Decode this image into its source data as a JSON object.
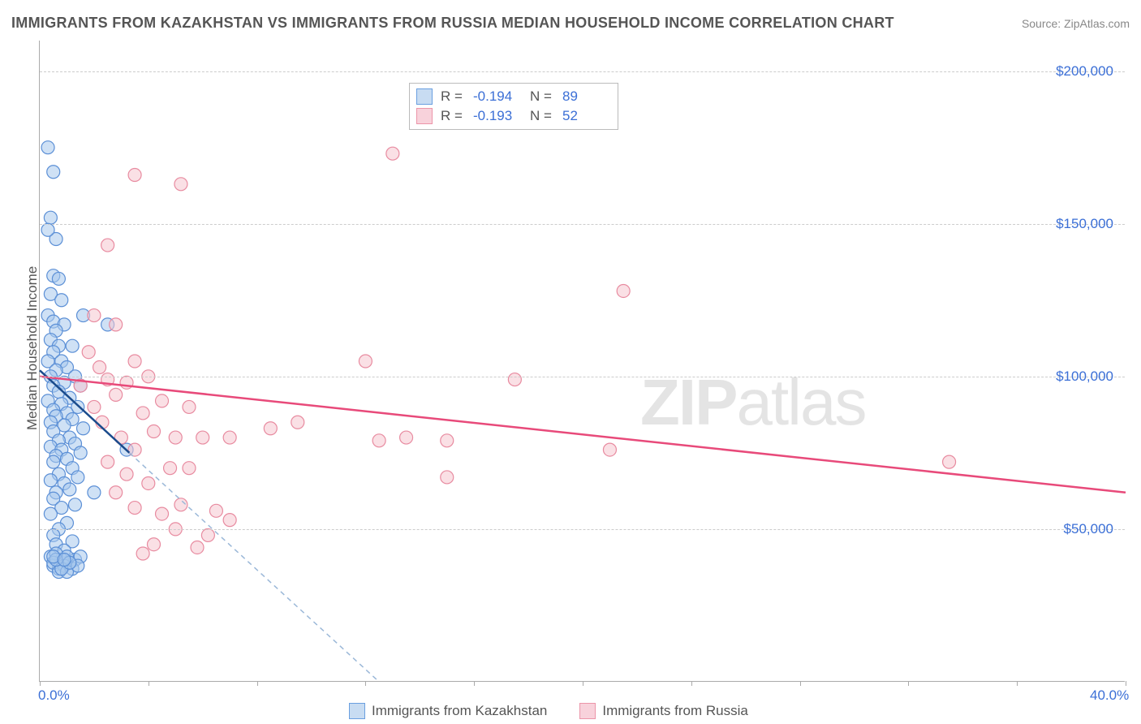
{
  "title": "IMMIGRANTS FROM KAZAKHSTAN VS IMMIGRANTS FROM RUSSIA MEDIAN HOUSEHOLD INCOME CORRELATION CHART",
  "source": "Source: ZipAtlas.com",
  "yaxis_title": "Median Household Income",
  "watermark": {
    "bold": "ZIP",
    "rest": "atlas"
  },
  "chart": {
    "type": "scatter",
    "xlim": [
      0,
      40
    ],
    "ylim": [
      0,
      210000
    ],
    "x_ticks": [
      0,
      4,
      8,
      12,
      16,
      20,
      24,
      28,
      32,
      36,
      40
    ],
    "x_labels": {
      "0": "0.0%",
      "40": "40.0%"
    },
    "y_ticks": [
      50000,
      100000,
      150000,
      200000
    ],
    "y_labels": [
      "$50,000",
      "$100,000",
      "$150,000",
      "$200,000"
    ],
    "grid_color": "#cccccc",
    "axis_color": "#aaaaaa",
    "tick_color": "#3b6fd6",
    "marker_radius": 8,
    "marker_stroke_width": 1.2,
    "series": [
      {
        "name": "Immigrants from Kazakhstan",
        "fill": "#a8c8ec",
        "stroke": "#5b8fd6",
        "swatch_fill": "#c8dcf2",
        "swatch_stroke": "#6a9fe0",
        "line_color": "#1a4b8c",
        "line_dash_color": "#9bb8d8",
        "trend": {
          "x1": 0,
          "y1": 102000,
          "x2": 3.3,
          "y2": 75000
        },
        "dash_ext": {
          "x1": 3.3,
          "y1": 75000,
          "x2": 12.5,
          "y2": 0
        },
        "points": [
          [
            0.3,
            175000
          ],
          [
            0.5,
            167000
          ],
          [
            0.4,
            152000
          ],
          [
            0.6,
            145000
          ],
          [
            0.3,
            148000
          ],
          [
            0.5,
            133000
          ],
          [
            0.7,
            132000
          ],
          [
            0.4,
            127000
          ],
          [
            0.8,
            125000
          ],
          [
            1.6,
            120000
          ],
          [
            0.3,
            120000
          ],
          [
            0.5,
            118000
          ],
          [
            0.9,
            117000
          ],
          [
            0.6,
            115000
          ],
          [
            2.5,
            117000
          ],
          [
            0.4,
            112000
          ],
          [
            0.7,
            110000
          ],
          [
            1.2,
            110000
          ],
          [
            0.5,
            108000
          ],
          [
            0.8,
            105000
          ],
          [
            0.3,
            105000
          ],
          [
            1.0,
            103000
          ],
          [
            0.6,
            102000
          ],
          [
            1.3,
            100000
          ],
          [
            0.4,
            100000
          ],
          [
            0.9,
            98000
          ],
          [
            0.5,
            97000
          ],
          [
            1.5,
            97000
          ],
          [
            0.7,
            95000
          ],
          [
            1.1,
            93000
          ],
          [
            0.3,
            92000
          ],
          [
            0.8,
            91000
          ],
          [
            1.4,
            90000
          ],
          [
            0.5,
            89000
          ],
          [
            1.0,
            88000
          ],
          [
            0.6,
            87000
          ],
          [
            1.2,
            86000
          ],
          [
            0.4,
            85000
          ],
          [
            0.9,
            84000
          ],
          [
            1.6,
            83000
          ],
          [
            0.5,
            82000
          ],
          [
            1.1,
            80000
          ],
          [
            0.7,
            79000
          ],
          [
            1.3,
            78000
          ],
          [
            0.4,
            77000
          ],
          [
            0.8,
            76000
          ],
          [
            1.5,
            75000
          ],
          [
            3.2,
            76000
          ],
          [
            0.6,
            74000
          ],
          [
            1.0,
            73000
          ],
          [
            0.5,
            72000
          ],
          [
            1.2,
            70000
          ],
          [
            0.7,
            68000
          ],
          [
            1.4,
            67000
          ],
          [
            0.4,
            66000
          ],
          [
            0.9,
            65000
          ],
          [
            1.1,
            63000
          ],
          [
            0.6,
            62000
          ],
          [
            2.0,
            62000
          ],
          [
            0.5,
            60000
          ],
          [
            1.3,
            58000
          ],
          [
            0.8,
            57000
          ],
          [
            0.4,
            55000
          ],
          [
            1.0,
            52000
          ],
          [
            0.7,
            50000
          ],
          [
            0.5,
            48000
          ],
          [
            1.2,
            46000
          ],
          [
            0.6,
            45000
          ],
          [
            0.9,
            43000
          ],
          [
            0.4,
            41000
          ],
          [
            0.8,
            40000
          ],
          [
            1.1,
            39000
          ],
          [
            0.5,
            38000
          ],
          [
            0.7,
            37000
          ],
          [
            1.3,
            40000
          ],
          [
            1.0,
            41000
          ],
          [
            0.6,
            42000
          ],
          [
            1.5,
            41000
          ],
          [
            0.5,
            39000
          ],
          [
            0.9,
            38000
          ],
          [
            1.2,
            37000
          ],
          [
            0.7,
            36000
          ],
          [
            1.0,
            36000
          ],
          [
            1.4,
            38000
          ],
          [
            0.8,
            37000
          ],
          [
            0.6,
            40000
          ],
          [
            1.1,
            39000
          ],
          [
            0.5,
            41000
          ],
          [
            0.9,
            40000
          ]
        ]
      },
      {
        "name": "Immigrants from Russia",
        "fill": "#f5c6d0",
        "stroke": "#e88ba0",
        "swatch_fill": "#f8d2db",
        "swatch_stroke": "#ec95a9",
        "line_color": "#e84a7a",
        "trend": {
          "x1": 0,
          "y1": 100000,
          "x2": 40,
          "y2": 62000
        },
        "points": [
          [
            3.5,
            166000
          ],
          [
            5.2,
            163000
          ],
          [
            13.0,
            173000
          ],
          [
            2.5,
            143000
          ],
          [
            21.5,
            128000
          ],
          [
            2.0,
            120000
          ],
          [
            2.8,
            117000
          ],
          [
            1.8,
            108000
          ],
          [
            3.5,
            105000
          ],
          [
            2.2,
            103000
          ],
          [
            4.0,
            100000
          ],
          [
            2.5,
            99000
          ],
          [
            3.2,
            98000
          ],
          [
            1.5,
            97000
          ],
          [
            2.8,
            94000
          ],
          [
            4.5,
            92000
          ],
          [
            2.0,
            90000
          ],
          [
            3.8,
            88000
          ],
          [
            5.5,
            90000
          ],
          [
            12.0,
            105000
          ],
          [
            2.3,
            85000
          ],
          [
            4.2,
            82000
          ],
          [
            3.0,
            80000
          ],
          [
            5.0,
            80000
          ],
          [
            6.0,
            80000
          ],
          [
            8.5,
            83000
          ],
          [
            7.0,
            80000
          ],
          [
            9.5,
            85000
          ],
          [
            12.5,
            79000
          ],
          [
            13.5,
            80000
          ],
          [
            15.0,
            79000
          ],
          [
            17.5,
            99000
          ],
          [
            21.0,
            76000
          ],
          [
            33.5,
            72000
          ],
          [
            3.5,
            76000
          ],
          [
            2.5,
            72000
          ],
          [
            4.8,
            70000
          ],
          [
            3.2,
            68000
          ],
          [
            5.5,
            70000
          ],
          [
            15.0,
            67000
          ],
          [
            4.0,
            65000
          ],
          [
            2.8,
            62000
          ],
          [
            5.2,
            58000
          ],
          [
            3.5,
            57000
          ],
          [
            6.5,
            56000
          ],
          [
            4.5,
            55000
          ],
          [
            7.0,
            53000
          ],
          [
            5.0,
            50000
          ],
          [
            6.2,
            48000
          ],
          [
            4.2,
            45000
          ],
          [
            5.8,
            44000
          ],
          [
            3.8,
            42000
          ]
        ]
      }
    ],
    "stats": [
      {
        "series": 0,
        "R": "-0.194",
        "N": "89"
      },
      {
        "series": 1,
        "R": "-0.193",
        "N": "52"
      }
    ]
  }
}
